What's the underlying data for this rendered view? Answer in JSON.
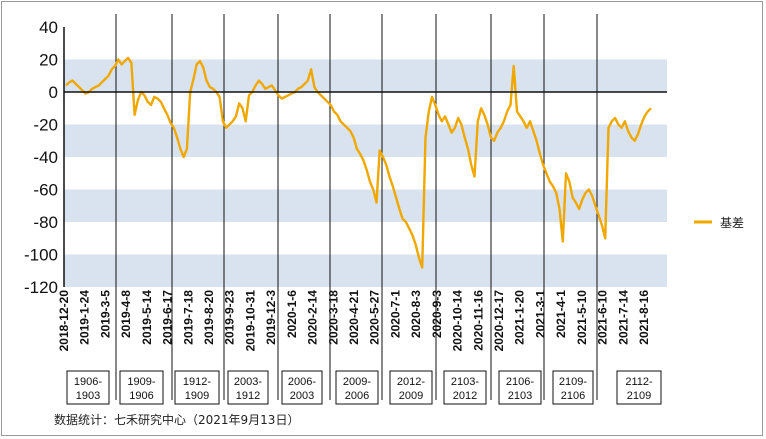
{
  "chart_data": {
    "type": "line",
    "title": "",
    "xlabel": "",
    "ylabel": "",
    "ylim": [
      -120,
      40
    ],
    "yticks": [
      40,
      20,
      0,
      -20,
      -40,
      -60,
      -80,
      -100,
      -120
    ],
    "bands": [
      [
        0,
        20
      ],
      [
        -40,
        -20
      ],
      [
        -80,
        -60
      ],
      [
        -120,
        -100
      ]
    ],
    "band_color": "#d9e3f0",
    "line_color": "#f0a800",
    "legend_position": "right",
    "x_tick_labels": [
      "2018-12-20",
      "2019-1-24",
      "2019-3-5",
      "2019-4-8",
      "2019-5-14",
      "2019-6-17",
      "2019-7-18",
      "2019-8-20",
      "2019-9-23",
      "2019-10-31",
      "2019-12-3",
      "2020-1-6",
      "2020-2-14",
      "2020-3-18",
      "2020-4-21",
      "2020-5-27",
      "2020-7-1",
      "2020-8-3",
      "2020-9-3",
      "2020-10-14",
      "2020-11-16",
      "2020-12-17",
      "2021-1-20",
      "2021-3-1",
      "2021-4-1",
      "2021-5-10",
      "2021-6-10",
      "2021-7-14",
      "2021-8-16"
    ],
    "series": [
      {
        "name": "基差",
        "values": [
          4,
          6,
          7,
          5,
          3,
          1,
          -1,
          0,
          2,
          3,
          4,
          6,
          8,
          10,
          14,
          16,
          20,
          17,
          19,
          21,
          18,
          -14,
          -5,
          0,
          -2,
          -6,
          -8,
          -3,
          -4,
          -6,
          -10,
          -14,
          -19,
          -22,
          -28,
          -35,
          -40,
          -35,
          0,
          8,
          17,
          19,
          15,
          7,
          3,
          2,
          0,
          -3,
          -18,
          -22,
          -20,
          -18,
          -15,
          -7,
          -10,
          -18,
          -2,
          0,
          4,
          7,
          5,
          2,
          3,
          4,
          1,
          -2,
          -4,
          -3,
          -2,
          -1,
          0,
          2,
          3,
          5,
          7,
          14,
          3,
          0,
          -2,
          -4,
          -6,
          -8,
          -12,
          -14,
          -18,
          -20,
          -22,
          -24,
          -28,
          -35,
          -38,
          -42,
          -48,
          -55,
          -60,
          -68,
          -36,
          -40,
          -45,
          -52,
          -58,
          -65,
          -72,
          -78,
          -80,
          -84,
          -88,
          -94,
          -102,
          -108,
          -28,
          -12,
          -3,
          -8,
          -14,
          -18,
          -15,
          -20,
          -25,
          -22,
          -16,
          -20,
          -28,
          -35,
          -45,
          -52,
          -18,
          -10,
          -14,
          -20,
          -28,
          -30,
          -25,
          -22,
          -18,
          -12,
          -8,
          16,
          -12,
          -15,
          -18,
          -22,
          -18,
          -24,
          -30,
          -38,
          -45,
          -50,
          -55,
          -58,
          -62,
          -72,
          -92,
          -50,
          -55,
          -65,
          -68,
          -72,
          -66,
          -62,
          -60,
          -64,
          -70,
          -76,
          -82,
          -90,
          -22,
          -18,
          -16,
          -20,
          -22,
          -18,
          -24,
          -28,
          -30,
          -26,
          -20,
          -15,
          -12,
          -10
        ]
      }
    ],
    "contracts": [
      "1906-1903",
      "1909-1906",
      "1912-1909",
      "2003-1912",
      "2006-2003",
      "2009-2006",
      "2012-2009",
      "2103-2012",
      "2106-2103",
      "2109-2106",
      "2112-2109"
    ]
  },
  "contract_boxes": [
    {
      "line1": "1906-",
      "line2": "1903"
    },
    {
      "line1": "1909-",
      "line2": "1906"
    },
    {
      "line1": "1912-",
      "line2": "1909"
    },
    {
      "line1": "2003-",
      "line2": "1912"
    },
    {
      "line1": "2006-",
      "line2": "2003"
    },
    {
      "line1": "2009-",
      "line2": "2006"
    },
    {
      "line1": "2012-",
      "line2": "2009"
    },
    {
      "line1": "2103-",
      "line2": "2012"
    },
    {
      "line1": "2106-",
      "line2": "2103"
    },
    {
      "line1": "2109-",
      "line2": "2106"
    },
    {
      "line1": "2112-",
      "line2": "2109"
    }
  ],
  "legend_label": "基差",
  "source": "数据统计：七禾研究中心（2021年9月13日）"
}
